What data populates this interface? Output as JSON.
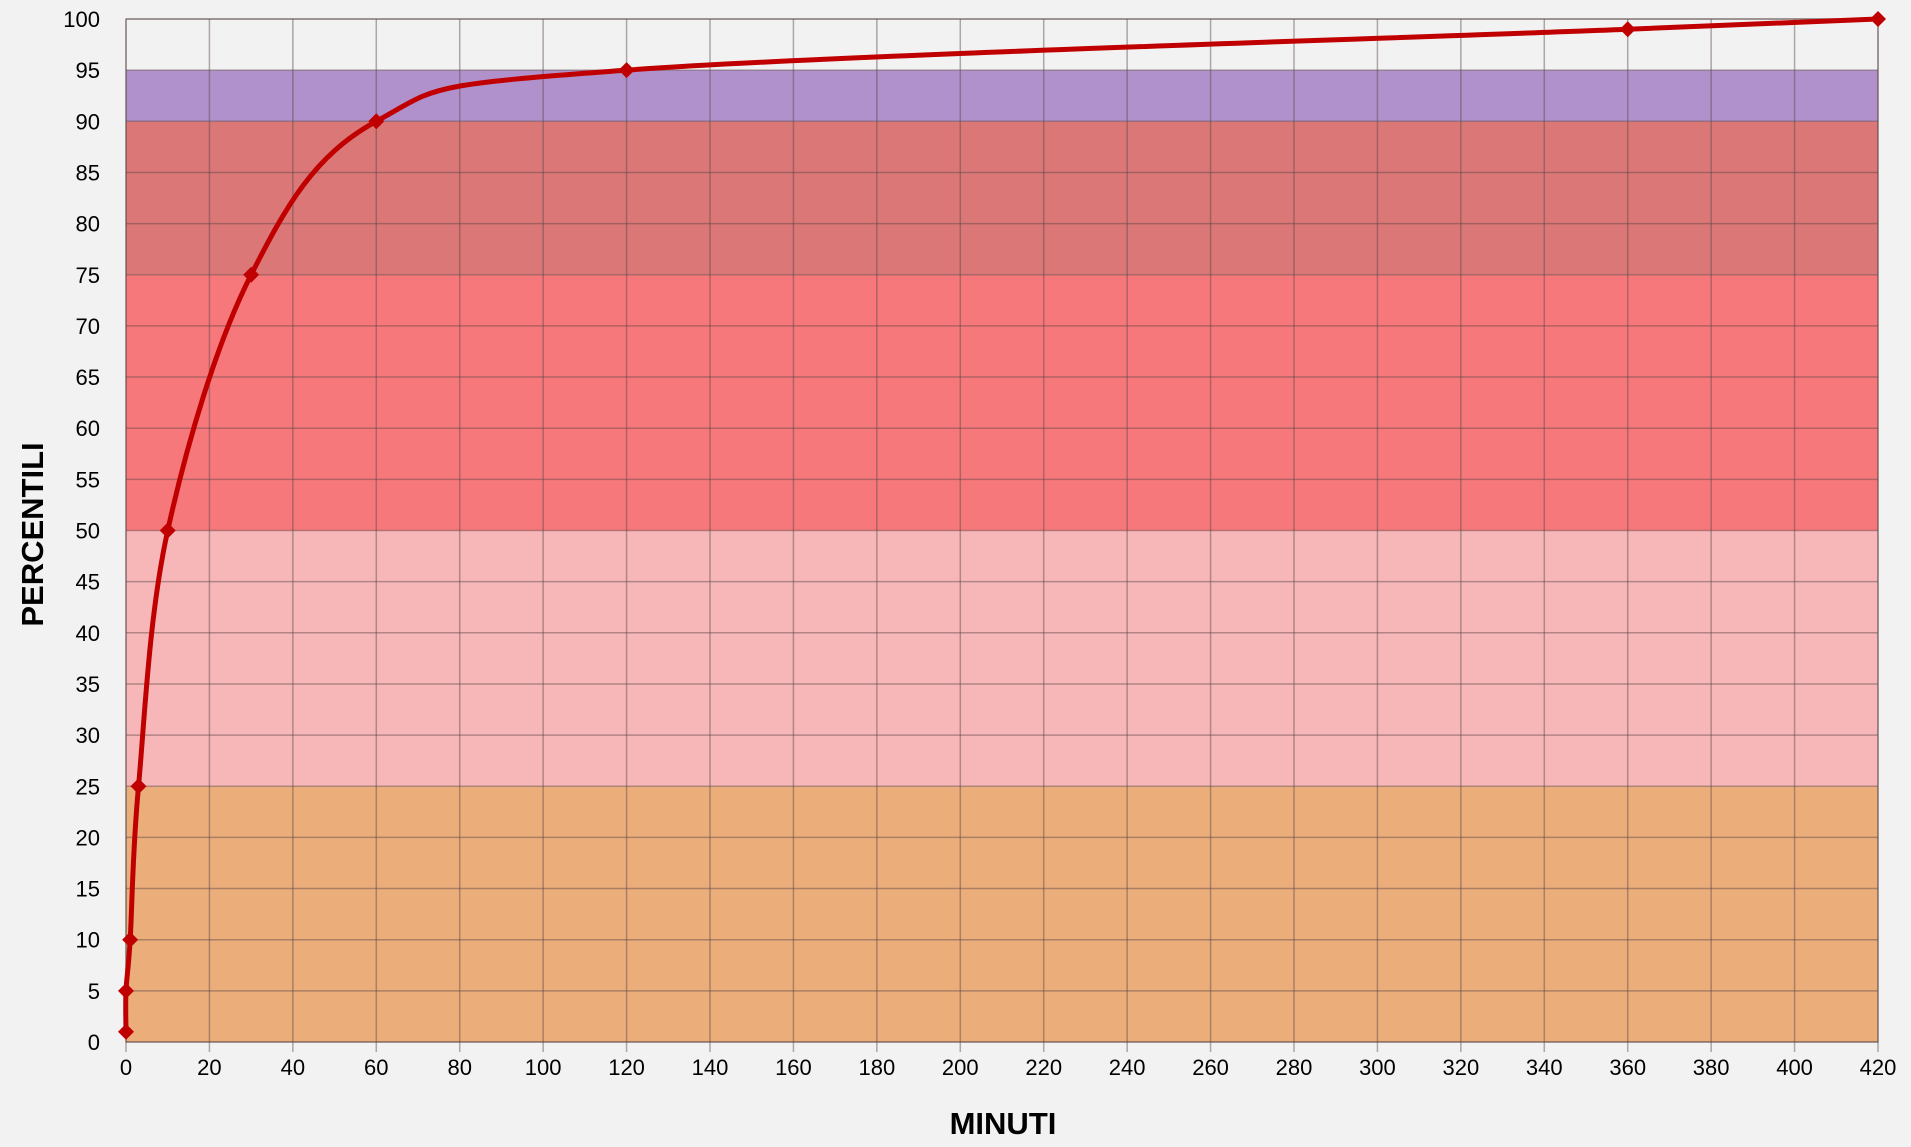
{
  "chart_data": {
    "type": "line",
    "title": "",
    "xlabel": "MINUTI",
    "ylabel": "PERCENTILI",
    "xlim": [
      0,
      420
    ],
    "ylim": [
      0,
      100
    ],
    "x_ticks": [
      "0",
      "20",
      "40",
      "60",
      "80",
      "100",
      "120",
      "140",
      "160",
      "180",
      "200",
      "220",
      "240",
      "260",
      "280",
      "300",
      "320",
      "340",
      "360",
      "380",
      "400",
      "420"
    ],
    "y_ticks": [
      "0",
      "5",
      "10",
      "15",
      "20",
      "25",
      "30",
      "35",
      "40",
      "45",
      "50",
      "55",
      "60",
      "65",
      "70",
      "75",
      "80",
      "85",
      "90",
      "95",
      "100"
    ],
    "grid": true,
    "legend": "none",
    "bands": [
      {
        "from": 0,
        "to": 25,
        "color": "#ebae7b"
      },
      {
        "from": 25,
        "to": 50,
        "color": "#f7b7b9"
      },
      {
        "from": 50,
        "to": 75,
        "color": "#f7787b"
      },
      {
        "from": 75,
        "to": 90,
        "color": "#db7777"
      },
      {
        "from": 90,
        "to": 95,
        "color": "#b191cb"
      }
    ],
    "series": [
      {
        "points": [
          {
            "x": 0,
            "y": 1
          },
          {
            "x": 0,
            "y": 5
          },
          {
            "x": 1,
            "y": 10
          },
          {
            "x": 3,
            "y": 25
          },
          {
            "x": 10,
            "y": 50
          },
          {
            "x": 30,
            "y": 75
          },
          {
            "x": 60,
            "y": 90
          },
          {
            "x": 120,
            "y": 95
          },
          {
            "x": 360,
            "y": 99
          },
          {
            "x": 420,
            "y": 100
          }
        ],
        "color": "#c00000"
      }
    ]
  }
}
